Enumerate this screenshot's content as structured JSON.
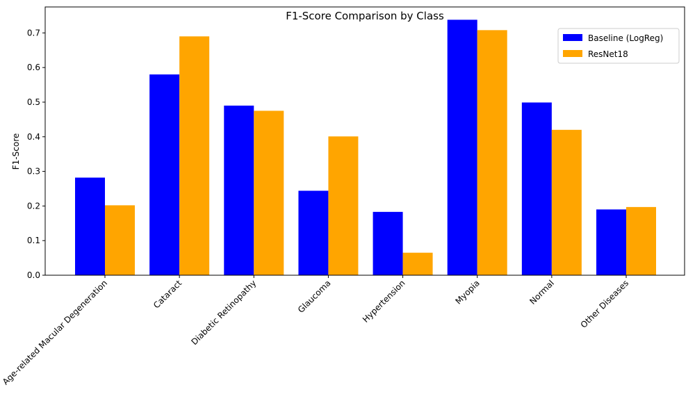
{
  "chart_data": {
    "type": "bar",
    "title": "F1-Score Comparison by Class",
    "xlabel": "",
    "ylabel": "F1-Score",
    "ylim": [
      0,
      0.775
    ],
    "yticks": [
      "0.0",
      "0.1",
      "0.2",
      "0.3",
      "0.4",
      "0.5",
      "0.6",
      "0.7"
    ],
    "categories": [
      "Age-related Macular Degeneration",
      "Cataract",
      "Diabetic Retinopathy",
      "Glaucoma",
      "Hypertension",
      "Myopia",
      "Normal",
      "Other Diseases"
    ],
    "series": [
      {
        "name": "Baseline (LogReg)",
        "color": "#0000ff",
        "values": [
          0.282,
          0.58,
          0.49,
          0.244,
          0.183,
          0.738,
          0.499,
          0.19
        ]
      },
      {
        "name": "ResNet18",
        "color": "#ffa500",
        "values": [
          0.202,
          0.69,
          0.475,
          0.401,
          0.065,
          0.708,
          0.42,
          0.197
        ]
      }
    ],
    "grid": false,
    "legend_position": "top-right"
  }
}
